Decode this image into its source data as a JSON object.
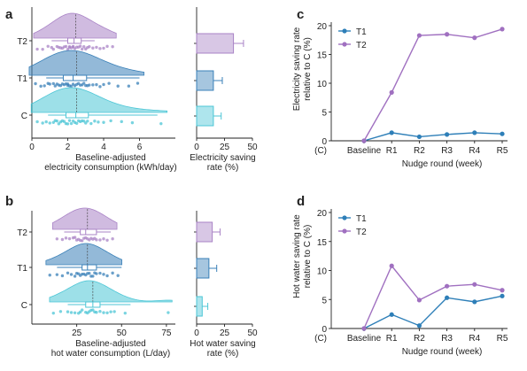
{
  "colors": {
    "C": "#4cc6d6",
    "T1": "#3a80b8",
    "T2": "#a983c6",
    "axis": "#222222",
    "line_T1": "#2e7fb8",
    "line_T2": "#a070c0"
  },
  "chart_data": [
    {
      "id": "a-raincloud",
      "panel": "a",
      "type": "raincloud",
      "xlabel_line1": "Baseline-adjusted",
      "xlabel_line2": "electricity consumption (kWh/day)",
      "xlim": [
        0,
        8
      ],
      "xticks": [
        0,
        2,
        4,
        6
      ],
      "xtick_labels": [
        "0",
        "2",
        "4",
        "6"
      ],
      "groups": [
        {
          "name": "T2",
          "q1": 2.0,
          "median": 2.35,
          "q3": 2.75,
          "whisker_low": 1.1,
          "whisker_high": 3.5,
          "mean": 2.45,
          "points": [
            0.3,
            0.6,
            0.9,
            1.1,
            1.2,
            1.4,
            1.5,
            1.6,
            1.7,
            1.8,
            1.9,
            2.0,
            2.1,
            2.1,
            2.2,
            2.3,
            2.3,
            2.4,
            2.5,
            2.6,
            2.7,
            2.8,
            2.9,
            3.0,
            3.1,
            3.2,
            3.4,
            3.6,
            3.8,
            4.0,
            4.2,
            4.5
          ]
        },
        {
          "name": "T1",
          "q1": 1.75,
          "median": 2.3,
          "q3": 3.05,
          "whisker_low": 0.8,
          "whisker_high": 6.0,
          "mean": 2.5,
          "points": [
            0.2,
            0.5,
            0.7,
            0.9,
            1.0,
            1.2,
            1.3,
            1.4,
            1.5,
            1.6,
            1.7,
            1.8,
            1.9,
            2.0,
            2.0,
            2.1,
            2.2,
            2.3,
            2.4,
            2.5,
            2.6,
            2.7,
            2.8,
            2.9,
            3.0,
            3.1,
            3.2,
            3.4,
            3.6,
            3.8,
            4.0,
            4.3,
            4.8,
            5.4,
            5.9
          ]
        },
        {
          "name": "C",
          "q1": 1.9,
          "median": 2.45,
          "q3": 3.15,
          "whisker_low": 0.9,
          "whisker_high": 7.0,
          "mean": 2.5,
          "points": [
            0.3,
            0.6,
            0.8,
            1.0,
            1.2,
            1.3,
            1.4,
            1.5,
            1.6,
            1.7,
            1.8,
            1.9,
            2.0,
            2.1,
            2.2,
            2.3,
            2.4,
            2.5,
            2.6,
            2.7,
            2.8,
            2.9,
            3.0,
            3.1,
            3.3,
            3.5,
            3.7,
            4.0,
            4.4,
            5.0,
            5.6,
            7.2
          ]
        }
      ]
    },
    {
      "id": "a-bars",
      "panel": "a",
      "type": "bar",
      "xlabel_line1": "Electricity saving",
      "xlabel_line2": "rate (%)",
      "xlim": [
        0,
        50
      ],
      "xticks": [
        0,
        25,
        50
      ],
      "xtick_labels": [
        "0",
        "25",
        "50"
      ],
      "groups": [
        {
          "name": "T2",
          "value": 33,
          "error": 9
        },
        {
          "name": "T1",
          "value": 15,
          "error": 8
        },
        {
          "name": "C",
          "value": 15,
          "error": 7
        }
      ]
    },
    {
      "id": "b-raincloud",
      "panel": "b",
      "type": "raincloud",
      "xlabel_line1": "Baseline-adjusted",
      "xlabel_line2": "hot water consumption (L/day)",
      "xlim": [
        0,
        80
      ],
      "xticks": [
        25,
        50,
        75
      ],
      "xtick_labels": [
        "25",
        "50",
        "75"
      ],
      "groups": [
        {
          "name": "T2",
          "q1": 27,
          "median": 30,
          "q3": 36,
          "whisker_low": 18,
          "whisker_high": 44,
          "mean": 31,
          "points": [
            14,
            17,
            19,
            21,
            23,
            24,
            25,
            26,
            27,
            28,
            29,
            30,
            31,
            32,
            33,
            34,
            35,
            36,
            38,
            40,
            42,
            45
          ]
        },
        {
          "name": "T1",
          "q1": 28,
          "median": 31,
          "q3": 36,
          "whisker_low": 14,
          "whisker_high": 50,
          "mean": 31,
          "points": [
            10,
            14,
            17,
            20,
            22,
            24,
            25,
            26,
            27,
            28,
            29,
            30,
            31,
            32,
            33,
            34,
            35,
            36,
            38,
            40,
            42,
            45,
            48
          ]
        },
        {
          "name": "C",
          "q1": 30,
          "median": 34,
          "q3": 38,
          "whisker_low": 20,
          "whisker_high": 55,
          "mean": 34,
          "points": [
            12,
            16,
            20,
            22,
            24,
            26,
            27,
            28,
            30,
            31,
            32,
            33,
            34,
            35,
            36,
            38,
            40,
            42,
            44,
            46,
            52,
            76
          ]
        }
      ]
    },
    {
      "id": "b-bars",
      "panel": "b",
      "type": "bar",
      "xlabel_line1": "Hot water saving",
      "xlabel_line2": "rate (%)",
      "xlim": [
        0,
        50
      ],
      "xticks": [
        0,
        25,
        50
      ],
      "xtick_labels": [
        "0",
        "25",
        "50"
      ],
      "groups": [
        {
          "name": "T2",
          "value": 14,
          "error": 7
        },
        {
          "name": "T1",
          "value": 11,
          "error": 7
        },
        {
          "name": "C",
          "value": 5,
          "error": 5
        }
      ]
    },
    {
      "id": "c",
      "panel": "c",
      "type": "line",
      "ylabel_line1": "Electricity saving rate",
      "ylabel_line2": "relative to C (%)",
      "xlabel": "Nudge round (week)",
      "categories": [
        "Baseline",
        "R1",
        "R2",
        "R3",
        "R4",
        "R5"
      ],
      "ylim": [
        0,
        20
      ],
      "yticks": [
        0,
        5,
        10,
        15,
        20
      ],
      "ytick_labels": [
        "0",
        "5",
        "10",
        "15",
        "20"
      ],
      "zero_extra_label": "(C)",
      "legend_position": "top-left",
      "series": [
        {
          "name": "T1",
          "values": [
            0,
            1.4,
            0.7,
            1.1,
            1.4,
            1.2
          ]
        },
        {
          "name": "T2",
          "values": [
            0,
            8.4,
            18.3,
            18.5,
            17.9,
            19.4
          ]
        }
      ]
    },
    {
      "id": "d",
      "panel": "d",
      "type": "line",
      "ylabel_line1": "Hot water saving rate",
      "ylabel_line2": "relative to C (%)",
      "xlabel": "Nudge round (week)",
      "categories": [
        "Baseline",
        "R1",
        "R2",
        "R3",
        "R4",
        "R5"
      ],
      "ylim": [
        0,
        20
      ],
      "yticks": [
        0,
        5,
        10,
        15,
        20
      ],
      "ytick_labels": [
        "0",
        "5",
        "10",
        "15",
        "20"
      ],
      "zero_extra_label": "(C)",
      "legend_position": "top-left",
      "series": [
        {
          "name": "T1",
          "values": [
            0,
            2.4,
            0.5,
            5.3,
            4.6,
            5.6
          ]
        },
        {
          "name": "T2",
          "values": [
            0,
            10.8,
            4.9,
            7.3,
            7.6,
            6.6
          ]
        }
      ]
    }
  ],
  "panel_letters": {
    "a": "a",
    "b": "b",
    "c": "c",
    "d": "d"
  }
}
